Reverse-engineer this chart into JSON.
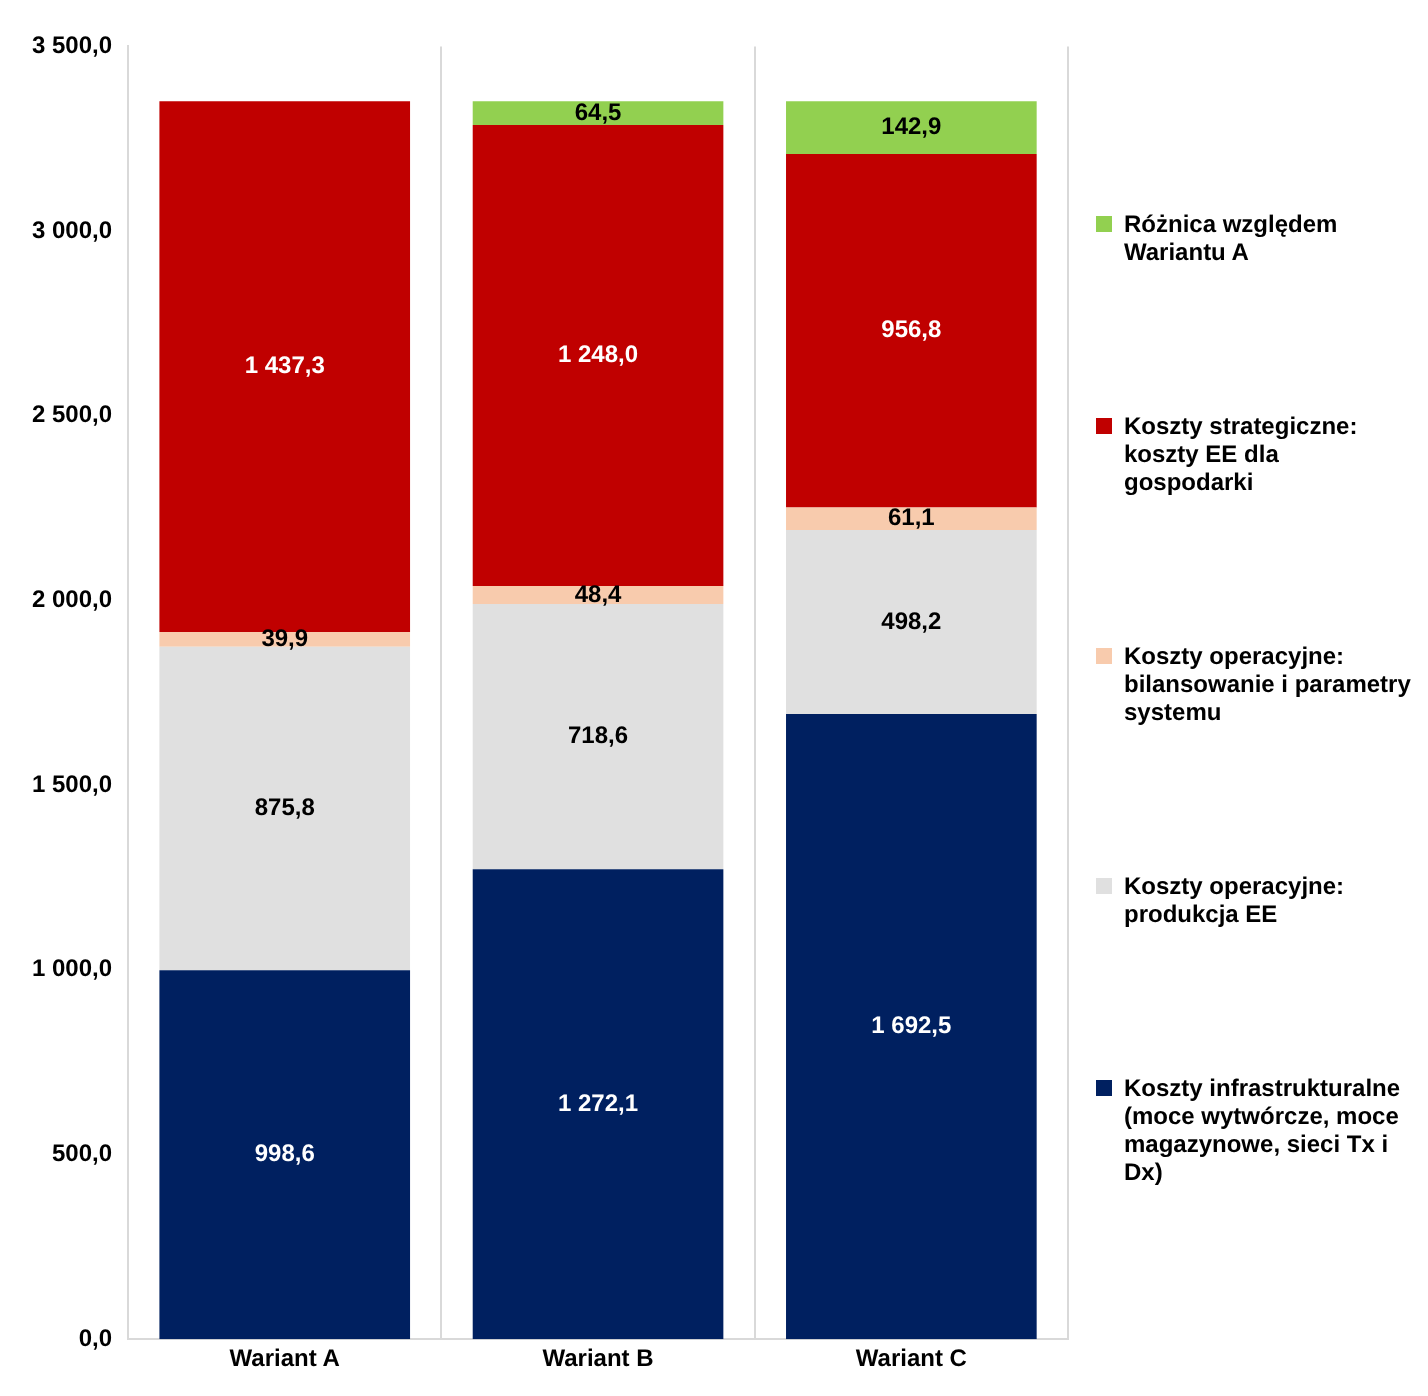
{
  "chart_data": {
    "type": "bar",
    "stacked": true,
    "categories": [
      "Wariant A",
      "Wariant B",
      "Wariant C"
    ],
    "series": [
      {
        "name": "Koszty infrastrukturalne (moce wytwórcze, moce magazynowe, sieci Tx i Dx)",
        "color": "#002060",
        "values": [
          998.6,
          1272.1,
          1692.5
        ],
        "value_labels": [
          "998,6",
          "1 272,1",
          "1 692,5"
        ]
      },
      {
        "name": "Koszty operacyjne: produkcja EE",
        "color": "#e0e0e0",
        "values": [
          875.8,
          718.6,
          498.2
        ],
        "value_labels": [
          "875,8",
          "718,6",
          "498,2"
        ]
      },
      {
        "name": "Koszty operacyjne: bilansowanie i parametry systemu",
        "color": "#f8cbad",
        "values": [
          39.9,
          48.4,
          61.1
        ],
        "value_labels": [
          "39,9",
          "48,4",
          "61,1"
        ]
      },
      {
        "name": "Koszty strategiczne: koszty EE dla gospodarki",
        "color": "#c00000",
        "values": [
          1437.3,
          1248.0,
          956.8
        ],
        "value_labels": [
          "1 437,3",
          "1 248,0",
          "956,8"
        ]
      },
      {
        "name": "Różnica względem Wariantu A",
        "color": "#92d050",
        "values": [
          null,
          64.5,
          142.9
        ],
        "value_labels": [
          null,
          "64,5",
          "142,9"
        ]
      }
    ],
    "ylim": [
      0,
      3500
    ],
    "yticks": [
      {
        "value": 0,
        "label": "0,0"
      },
      {
        "value": 500,
        "label": "500,0"
      },
      {
        "value": 1000,
        "label": "1 000,0"
      },
      {
        "value": 1500,
        "label": "1 500,0"
      },
      {
        "value": 2000,
        "label": "2 000,0"
      },
      {
        "value": 2500,
        "label": "2 500,0"
      },
      {
        "value": 3000,
        "label": "3 000,0"
      },
      {
        "value": 3500,
        "label": "3 500,0"
      }
    ],
    "grid": "x",
    "legend": "right"
  }
}
